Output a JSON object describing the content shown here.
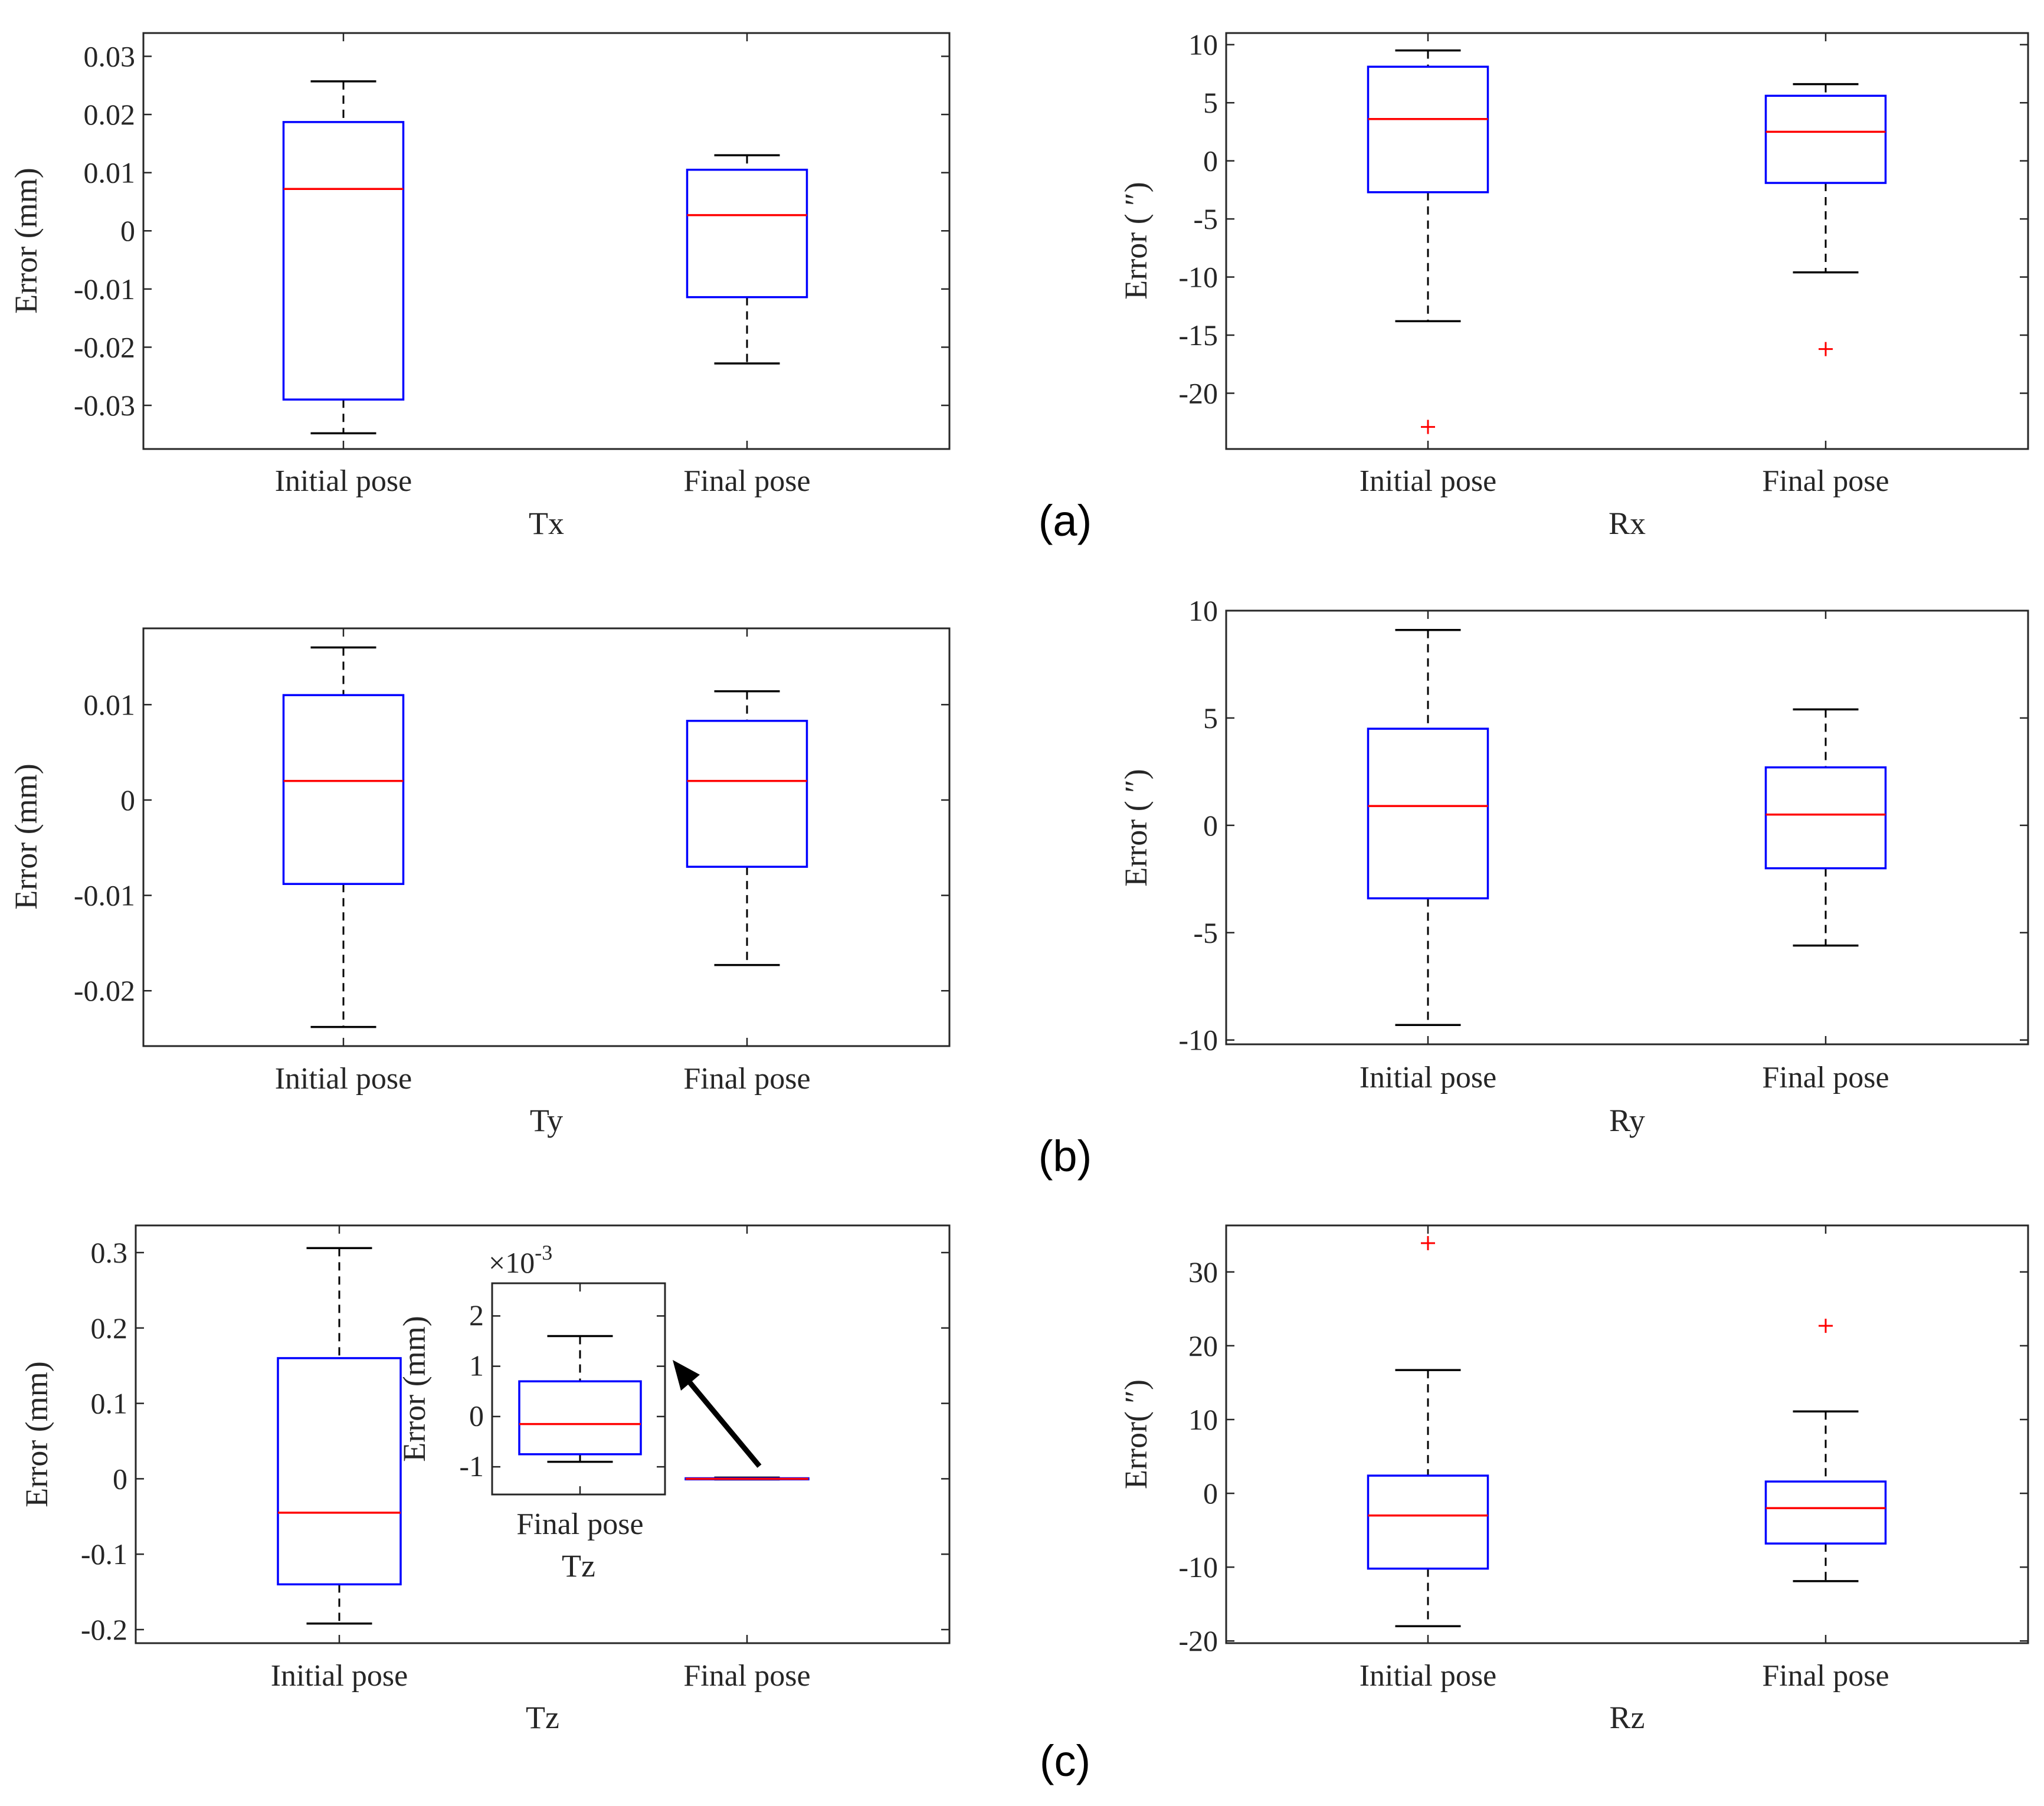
{
  "colors": {
    "box": "#0000ff",
    "median": "#ff0000",
    "whisker": "#000000",
    "outlier": "#ff0000",
    "axis": "#262626"
  },
  "panel_labels": [
    "(a)",
    "(b)",
    "(c)"
  ],
  "chart_data": [
    {
      "id": "tx",
      "type": "box",
      "xlabel": "Tx",
      "ylabel": "Error (mm)",
      "categories": [
        "Initial pose",
        "Final pose"
      ],
      "ylim": [
        -0.0375,
        0.034
      ],
      "yticks": [
        -0.03,
        -0.02,
        -0.01,
        0,
        0.01,
        0.02,
        0.03
      ],
      "ytick_labels": [
        "-0.03",
        "-0.02",
        "-0.01",
        "0",
        "0.01",
        "0.02",
        "0.03"
      ],
      "boxes": [
        {
          "whisker_low": -0.0348,
          "q1": -0.029,
          "median": 0.0072,
          "q3": 0.0187,
          "whisker_high": 0.0257,
          "outliers": []
        },
        {
          "whisker_low": -0.0228,
          "q1": -0.0114,
          "median": 0.0027,
          "q3": 0.0105,
          "whisker_high": 0.013,
          "outliers": []
        }
      ]
    },
    {
      "id": "rx",
      "type": "box",
      "xlabel": "Rx",
      "ylabel": "Error ( ″)",
      "categories": [
        "Initial pose",
        "Final pose"
      ],
      "ylim": [
        -24.8,
        11.0
      ],
      "yticks": [
        -20,
        -15,
        -10,
        -5,
        0,
        5,
        10
      ],
      "ytick_labels": [
        "-20",
        "-15",
        "-10",
        "-5",
        "0",
        "5",
        "10"
      ],
      "boxes": [
        {
          "whisker_low": -13.8,
          "q1": -2.7,
          "median": 3.6,
          "q3": 8.1,
          "whisker_high": 9.5,
          "outliers": [
            -22.9
          ]
        },
        {
          "whisker_low": -9.6,
          "q1": -1.9,
          "median": 2.5,
          "q3": 5.6,
          "whisker_high": 6.6,
          "outliers": [
            -16.2
          ]
        }
      ]
    },
    {
      "id": "ty",
      "type": "box",
      "xlabel": "Ty",
      "ylabel": "Error (mm)",
      "categories": [
        "Initial pose",
        "Final pose"
      ],
      "ylim": [
        -0.0258,
        0.018
      ],
      "yticks": [
        -0.02,
        -0.01,
        0,
        0.01
      ],
      "ytick_labels": [
        "-0.02",
        "-0.01",
        "0",
        "0.01"
      ],
      "boxes": [
        {
          "whisker_low": -0.0238,
          "q1": -0.0088,
          "median": 0.002,
          "q3": 0.011,
          "whisker_high": 0.016,
          "outliers": []
        },
        {
          "whisker_low": -0.0173,
          "q1": -0.007,
          "median": 0.002,
          "q3": 0.0083,
          "whisker_high": 0.0114,
          "outliers": []
        }
      ]
    },
    {
      "id": "ry",
      "type": "box",
      "xlabel": "Ry",
      "ylabel": "Error ( ″)",
      "categories": [
        "Initial pose",
        "Final pose"
      ],
      "ylim": [
        -10.2,
        10.0
      ],
      "yticks": [
        -10,
        -5,
        0,
        5,
        10
      ],
      "ytick_labels": [
        "-10",
        "-5",
        "0",
        "5",
        "10"
      ],
      "boxes": [
        {
          "whisker_low": -9.3,
          "q1": -3.4,
          "median": 0.9,
          "q3": 4.5,
          "whisker_high": 9.1,
          "outliers": []
        },
        {
          "whisker_low": -5.6,
          "q1": -2.0,
          "median": 0.5,
          "q3": 2.7,
          "whisker_high": 5.4,
          "outliers": []
        }
      ]
    },
    {
      "id": "tz",
      "type": "box",
      "xlabel": "Tz",
      "ylabel": "Error (mm)",
      "categories": [
        "Initial pose",
        "Final pose"
      ],
      "ylim": [
        -0.218,
        0.336
      ],
      "yticks": [
        -0.2,
        -0.1,
        0,
        0.1,
        0.2,
        0.3
      ],
      "ytick_labels": [
        "-0.2",
        "-0.1",
        "0",
        "0.1",
        "0.2",
        "0.3"
      ],
      "boxes": [
        {
          "whisker_low": -0.192,
          "q1": -0.14,
          "median": -0.045,
          "q3": 0.16,
          "whisker_high": 0.306,
          "outliers": []
        },
        {
          "whisker_low": -0.0009,
          "q1": -0.00075,
          "median": -0.0001,
          "q3": 0.0007,
          "whisker_high": 0.0016,
          "outliers": []
        }
      ]
    },
    {
      "id": "tz_inset",
      "type": "box",
      "xlabel": "Tz",
      "ylabel": "Error (mm)",
      "categories": [
        "Final pose"
      ],
      "exponent_label": "×10",
      "exponent_power": "-3",
      "ylim": [
        -1.55,
        2.65
      ],
      "yticks": [
        -1,
        0,
        1,
        2
      ],
      "ytick_labels": [
        "-1",
        "0",
        "1",
        "2"
      ],
      "boxes": [
        {
          "whisker_low": -0.9,
          "q1": -0.75,
          "median": -0.15,
          "q3": 0.7,
          "whisker_high": 1.6,
          "outliers": []
        }
      ]
    },
    {
      "id": "rz",
      "type": "box",
      "xlabel": "Rz",
      "ylabel": "Error( ″)",
      "categories": [
        "Initial pose",
        "Final pose"
      ],
      "ylim": [
        -20.3,
        36.3
      ],
      "yticks": [
        -20,
        -10,
        0,
        10,
        20,
        30
      ],
      "ytick_labels": [
        "-20",
        "-10",
        "0",
        "10",
        "20",
        "30"
      ],
      "boxes": [
        {
          "whisker_low": -18.0,
          "q1": -10.2,
          "median": -3.0,
          "q3": 2.4,
          "whisker_high": 16.7,
          "outliers": [
            33.9
          ]
        },
        {
          "whisker_low": -11.9,
          "q1": -6.8,
          "median": -2.0,
          "q3": 1.6,
          "whisker_high": 11.1,
          "outliers": [
            22.7
          ]
        }
      ]
    }
  ]
}
